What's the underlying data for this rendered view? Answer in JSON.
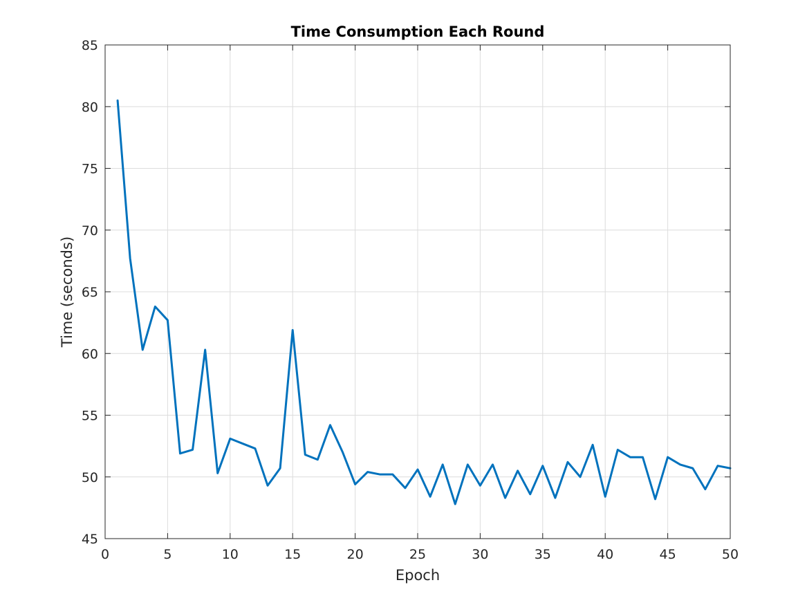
{
  "chart_data": {
    "type": "line",
    "title": "Time Consumption Each Round",
    "xlabel": "Epoch",
    "ylabel": "Time (seconds)",
    "xlim": [
      0,
      50
    ],
    "ylim": [
      45,
      85
    ],
    "xticks": [
      0,
      5,
      10,
      15,
      20,
      25,
      30,
      35,
      40,
      45,
      50
    ],
    "yticks": [
      45,
      50,
      55,
      60,
      65,
      70,
      75,
      80,
      85
    ],
    "grid": true,
    "legend": "none",
    "line_color": "#0072BD",
    "series": [
      {
        "x": [
          1,
          2,
          3,
          4,
          5,
          6,
          7,
          8,
          9,
          10,
          11,
          12,
          13,
          14,
          15,
          16,
          17,
          18,
          19,
          20,
          21,
          22,
          23,
          24,
          25,
          26,
          27,
          28,
          29,
          30,
          31,
          32,
          33,
          34,
          35,
          36,
          37,
          38,
          39,
          40,
          41,
          42,
          43,
          44,
          45,
          46,
          47,
          48,
          49,
          50
        ],
        "values": [
          80.5,
          67.7,
          60.3,
          63.8,
          62.7,
          51.9,
          52.2,
          60.3,
          50.3,
          53.1,
          52.7,
          52.3,
          49.3,
          50.7,
          61.9,
          51.8,
          51.4,
          54.2,
          52.0,
          49.4,
          50.4,
          50.2,
          50.2,
          49.1,
          50.6,
          48.4,
          51.0,
          47.8,
          51.0,
          49.3,
          51.0,
          48.3,
          50.5,
          48.6,
          50.9,
          48.3,
          51.2,
          50.0,
          52.6,
          48.4,
          52.2,
          51.6,
          51.6,
          48.2,
          51.6,
          51.0,
          50.7,
          49.0,
          50.9,
          50.7
        ]
      }
    ]
  }
}
